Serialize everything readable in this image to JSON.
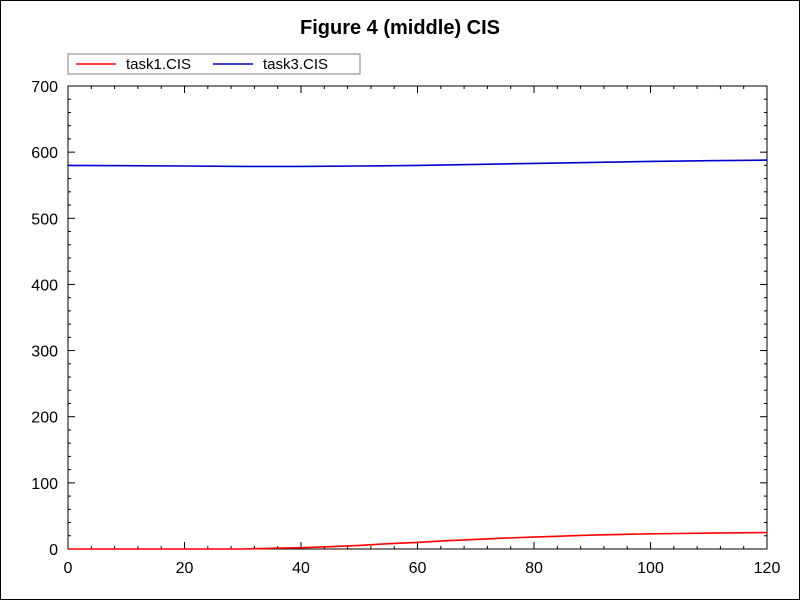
{
  "chart_data": {
    "type": "line",
    "title": "Figure 4 (middle) CIS",
    "xlabel": "",
    "ylabel": "",
    "xlim": [
      0,
      120
    ],
    "ylim": [
      0,
      700
    ],
    "x_ticks": [
      0,
      20,
      40,
      60,
      80,
      100,
      120
    ],
    "y_ticks": [
      0,
      100,
      200,
      300,
      400,
      500,
      600,
      700
    ],
    "grid": false,
    "legend_position": "top-left",
    "series": [
      {
        "name": "task1.CIS",
        "color": "#ff0000",
        "x": [
          0,
          10,
          20,
          30,
          35,
          40,
          45,
          50,
          55,
          60,
          65,
          70,
          75,
          80,
          85,
          90,
          95,
          100,
          105,
          110,
          115,
          120
        ],
        "y": [
          0,
          0,
          0,
          0,
          1,
          2,
          3.5,
          5.5,
          8,
          10,
          12.5,
          14.5,
          16.5,
          18,
          19.5,
          21,
          22,
          23,
          23.5,
          24,
          24.5,
          25
        ]
      },
      {
        "name": "task3.CIS",
        "color": "#0000cc",
        "x": [
          0,
          10,
          20,
          30,
          40,
          50,
          60,
          70,
          80,
          90,
          100,
          110,
          120
        ],
        "y": [
          580,
          579.5,
          579,
          578.5,
          578.5,
          579,
          580,
          581.5,
          583,
          584.5,
          586,
          587,
          588
        ]
      }
    ]
  }
}
